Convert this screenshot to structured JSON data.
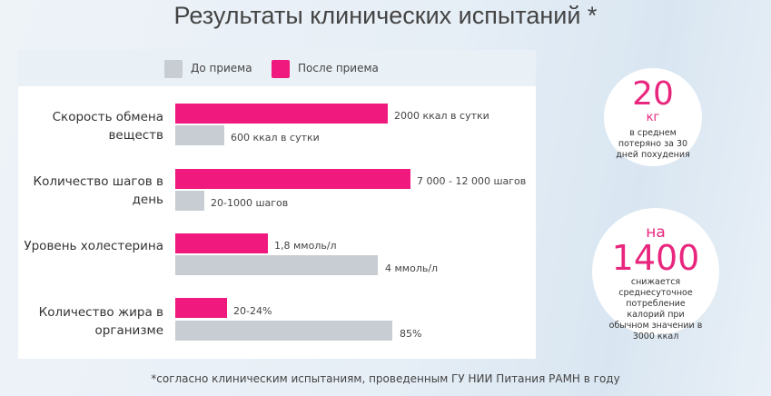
{
  "title": "Результаты клинических испытаний *",
  "legend": {
    "before": "До приема",
    "after": "После приема"
  },
  "rows": [
    {
      "label": "Скорость обмена веществ",
      "after": "2000 ккал в сутки",
      "before": "600 ккал в сутки"
    },
    {
      "label": "Количество шагов в день",
      "after": "7 000 - 12 000 шагов",
      "before": "20-1000 шагов"
    },
    {
      "label": "Уровень холестерина",
      "after": "1,8 ммоль/л",
      "before": "4 ммоль/л"
    },
    {
      "label": "Количество жира в организме",
      "after": "20-24%",
      "before": "85%"
    }
  ],
  "badges": [
    {
      "value": "20",
      "unit": "кг",
      "text": "в среднем потеряно за 30 дней похудения"
    },
    {
      "prefix": "на",
      "value": "1400",
      "text": "снижается среднесуточное потребление калорий при обычном значении в 3000 ккал"
    }
  ],
  "footnote": "*согласно клиническим испытаниям, проведенным ГУ НИИ Питания РАМН в году"
}
